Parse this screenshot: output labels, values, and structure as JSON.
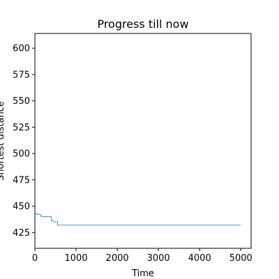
{
  "chart_data": {
    "type": "line",
    "title": "Progress till now",
    "xlabel": "Time",
    "ylabel": "Shortest distance",
    "xlim": [
      0,
      5250
    ],
    "ylim": [
      410,
      614
    ],
    "xticks": [
      0,
      1000,
      2000,
      3000,
      4000,
      5000
    ],
    "yticks": [
      425,
      450,
      475,
      500,
      525,
      550,
      575,
      600
    ],
    "grid": false,
    "series_color": "#1f77b4",
    "series": [
      {
        "x": [
          0,
          50,
          50,
          150,
          150,
          400,
          400,
          480,
          480,
          550,
          550,
          5000
        ],
        "y": [
          443,
          443,
          442,
          442,
          440,
          440,
          436,
          436,
          435,
          435,
          432,
          432
        ]
      }
    ]
  }
}
